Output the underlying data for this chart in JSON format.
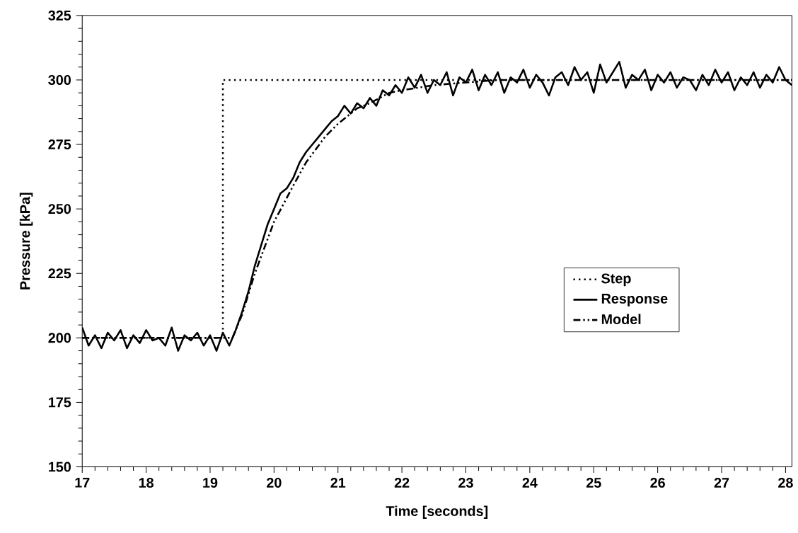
{
  "chart_data": {
    "type": "line",
    "xlabel": "Time [seconds]",
    "ylabel": "Pressure [kPa]",
    "xlim": [
      17,
      28.1
    ],
    "ylim": [
      150,
      325
    ],
    "xticks": [
      17,
      18,
      19,
      20,
      21,
      22,
      23,
      24,
      25,
      26,
      27,
      28
    ],
    "yticks": [
      150,
      175,
      200,
      225,
      250,
      275,
      300,
      325
    ],
    "grid": false,
    "legend": "right",
    "marker": "none",
    "series": [
      {
        "name": "Step",
        "color": "#000000",
        "line_style": "dotted",
        "x": [
          17,
          19.2,
          19.2,
          28.1
        ],
        "values": [
          200,
          200,
          300,
          300
        ]
      },
      {
        "name": "Response",
        "color": "#000000",
        "line_style": "solid",
        "x": [
          17.0,
          17.1,
          17.2,
          17.3,
          17.4,
          17.5,
          17.6,
          17.7,
          17.8,
          17.9,
          18.0,
          18.1,
          18.2,
          18.3,
          18.4,
          18.5,
          18.6,
          18.7,
          18.8,
          18.9,
          19.0,
          19.1,
          19.2,
          19.3,
          19.4,
          19.5,
          19.6,
          19.7,
          19.8,
          19.9,
          20.0,
          20.1,
          20.2,
          20.3,
          20.4,
          20.5,
          20.6,
          20.7,
          20.8,
          20.9,
          21.0,
          21.1,
          21.2,
          21.3,
          21.4,
          21.5,
          21.6,
          21.7,
          21.8,
          21.9,
          22.0,
          22.1,
          22.2,
          22.3,
          22.4,
          22.5,
          22.6,
          22.7,
          22.8,
          22.9,
          23.0,
          23.1,
          23.2,
          23.3,
          23.4,
          23.5,
          23.6,
          23.7,
          23.8,
          23.9,
          24.0,
          24.1,
          24.2,
          24.3,
          24.4,
          24.5,
          24.6,
          24.7,
          24.8,
          24.9,
          25.0,
          25.1,
          25.2,
          25.3,
          25.4,
          25.5,
          25.6,
          25.7,
          25.8,
          25.9,
          26.0,
          26.1,
          26.2,
          26.3,
          26.4,
          26.5,
          26.6,
          26.7,
          26.8,
          26.9,
          27.0,
          27.1,
          27.2,
          27.3,
          27.4,
          27.5,
          27.6,
          27.7,
          27.8,
          27.9,
          28.0,
          28.1
        ],
        "values": [
          204,
          197,
          201,
          196,
          202,
          199,
          203,
          196,
          201,
          198,
          203,
          199,
          200,
          197,
          204,
          195,
          201,
          199,
          202,
          197,
          201,
          195,
          202,
          197,
          203,
          210,
          218,
          228,
          236,
          244,
          250,
          256,
          258,
          262,
          268,
          272,
          275,
          278,
          281,
          284,
          286,
          290,
          287,
          291,
          289,
          293,
          290,
          296,
          294,
          298,
          295,
          301,
          297,
          302,
          295,
          300,
          298,
          303,
          294,
          301,
          299,
          304,
          296,
          302,
          298,
          303,
          295,
          301,
          299,
          304,
          297,
          302,
          299,
          294,
          301,
          303,
          298,
          305,
          300,
          303,
          295,
          306,
          299,
          303,
          307,
          297,
          302,
          300,
          304,
          296,
          302,
          299,
          303,
          297,
          301,
          300,
          296,
          302,
          298,
          304,
          299,
          303,
          296,
          301,
          298,
          303,
          297,
          302,
          299,
          305,
          300,
          298
        ]
      },
      {
        "name": "Model",
        "color": "#000000",
        "line_style": "dashed",
        "x": [
          17,
          19.35,
          19.5,
          19.7,
          20.0,
          20.3,
          20.5,
          20.8,
          21.0,
          21.3,
          21.5,
          21.8,
          22.0,
          22.5,
          23.0,
          23.5,
          24.0,
          28.1
        ],
        "values": [
          200,
          200,
          209,
          225,
          245,
          259,
          268,
          278,
          283,
          289,
          291,
          295,
          296,
          298,
          299,
          300,
          300,
          300
        ]
      }
    ]
  }
}
